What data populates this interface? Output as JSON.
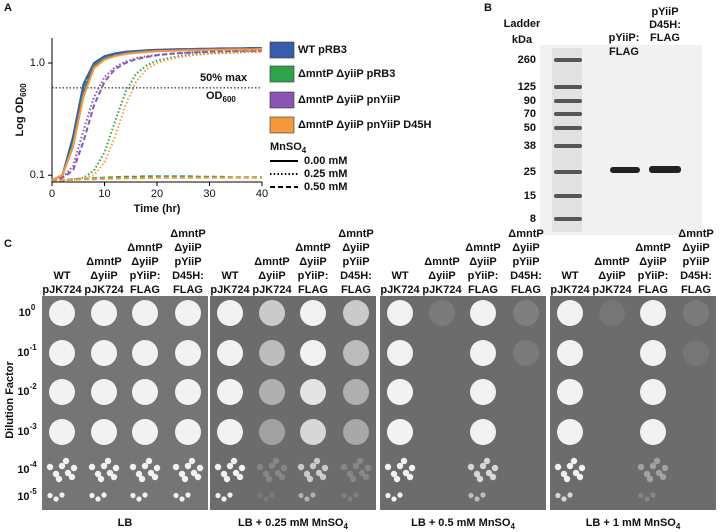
{
  "panel_labels": [
    "A",
    "B",
    "C"
  ],
  "chart_data": {
    "type": "line",
    "x_label": "Time (hr)",
    "y_label": {
      "text": "Log OD",
      "sub": "600"
    },
    "x": [
      0,
      2,
      4,
      6,
      8,
      10,
      12,
      14,
      16,
      18,
      20,
      22,
      24,
      26,
      28,
      30,
      32,
      34,
      36,
      38,
      40
    ],
    "xlim": [
      0,
      40
    ],
    "xticks": [
      0,
      10,
      20,
      30,
      40
    ],
    "log_y": true,
    "ylim": [
      0.087,
      1.67
    ],
    "yticks": [
      0.1,
      {
        "value": 1,
        "label": "1.0"
      }
    ],
    "annotation": {
      "text": "50% max",
      "text2": "OD",
      "sub": "600",
      "y": 0.6
    },
    "style_legend": {
      "title": {
        "text": "MnSO",
        "sub": "4"
      },
      "entries": [
        "0.00 mM",
        "0.25 mM",
        "0.50 mM"
      ]
    },
    "series": [
      {
        "name": "WT pRB3",
        "color": "#3b5bab",
        "lines": [
          [
            0.09,
            0.1,
            0.22,
            0.65,
            1.0,
            1.15,
            1.22,
            1.26,
            1.28,
            1.3,
            1.31,
            1.32,
            1.33,
            1.33,
            1.34,
            1.34,
            1.35,
            1.35,
            1.35,
            1.36,
            1.36
          ],
          [
            0.09,
            0.1,
            0.2,
            0.6,
            0.98,
            1.13,
            1.2,
            1.25,
            1.27,
            1.29,
            1.3,
            1.31,
            1.32,
            1.33,
            1.33,
            1.34,
            1.34,
            1.35,
            1.35,
            1.35,
            1.35
          ],
          [
            0.09,
            0.1,
            0.19,
            0.58,
            0.96,
            1.12,
            1.2,
            1.24,
            1.27,
            1.29,
            1.3,
            1.31,
            1.32,
            1.32,
            1.33,
            1.33,
            1.34,
            1.34,
            1.35,
            1.35,
            1.35
          ]
        ]
      },
      {
        "name": "ΔmntP ΔyiiP pRB3",
        "color": "#2ea34a",
        "lines": [
          [
            0.09,
            0.1,
            0.19,
            0.55,
            0.95,
            1.1,
            1.17,
            1.22,
            1.25,
            1.27,
            1.28,
            1.29,
            1.3,
            1.31,
            1.31,
            1.32,
            1.32,
            1.33,
            1.33,
            1.33,
            1.34
          ],
          [
            0.09,
            0.09,
            0.092,
            0.095,
            0.11,
            0.16,
            0.3,
            0.55,
            0.8,
            0.95,
            1.05,
            1.1,
            1.15,
            1.18,
            1.2,
            1.22,
            1.23,
            1.24,
            1.25,
            1.26,
            1.26
          ],
          [
            0.09,
            0.09,
            0.092,
            0.093,
            0.094,
            0.095,
            0.096,
            0.097,
            0.097,
            0.098,
            0.098,
            0.098,
            0.098,
            0.098,
            0.097,
            0.097,
            0.097,
            0.096,
            0.096,
            0.096,
            0.096
          ]
        ]
      },
      {
        "name": "ΔmntP ΔyiiP pnYiiP",
        "color": "#8a55b3",
        "lines": [
          [
            0.09,
            0.1,
            0.18,
            0.52,
            0.92,
            1.08,
            1.16,
            1.21,
            1.24,
            1.26,
            1.28,
            1.29,
            1.3,
            1.3,
            1.31,
            1.31,
            1.32,
            1.32,
            1.33,
            1.33,
            1.33
          ],
          [
            0.09,
            0.095,
            0.12,
            0.25,
            0.5,
            0.75,
            0.92,
            1.03,
            1.1,
            1.15,
            1.18,
            1.2,
            1.22,
            1.24,
            1.25,
            1.26,
            1.27,
            1.28,
            1.28,
            1.29,
            1.29
          ],
          [
            0.09,
            0.095,
            0.11,
            0.2,
            0.42,
            0.68,
            0.88,
            1.0,
            1.08,
            1.13,
            1.17,
            1.2,
            1.22,
            1.23,
            1.25,
            1.26,
            1.27,
            1.27,
            1.28,
            1.28,
            1.29
          ]
        ]
      },
      {
        "name": "ΔmntP ΔyiiP pnYiiP D45H",
        "color": "#f59a3c",
        "lines": [
          [
            0.09,
            0.1,
            0.18,
            0.5,
            0.9,
            1.07,
            1.15,
            1.2,
            1.23,
            1.25,
            1.27,
            1.28,
            1.29,
            1.3,
            1.3,
            1.31,
            1.31,
            1.32,
            1.32,
            1.32,
            1.33
          ],
          [
            0.09,
            0.09,
            0.091,
            0.094,
            0.1,
            0.13,
            0.22,
            0.42,
            0.68,
            0.88,
            1.0,
            1.07,
            1.12,
            1.16,
            1.19,
            1.21,
            1.22,
            1.23,
            1.24,
            1.25,
            1.25
          ],
          [
            0.09,
            0.09,
            0.091,
            0.092,
            0.092,
            0.093,
            0.093,
            0.094,
            0.094,
            0.094,
            0.095,
            0.095,
            0.095,
            0.095,
            0.095,
            0.095,
            0.095,
            0.095,
            0.095,
            0.095,
            0.095
          ]
        ]
      }
    ]
  },
  "panel_b": {
    "ladder_header": [
      "Ladder",
      "kDa"
    ],
    "lane1_header": [
      "pYiiP:",
      "FLAG"
    ],
    "lane2_header": [
      "pYiiP",
      "D45H:",
      "FLAG"
    ],
    "ladder": [
      260,
      125,
      90,
      70,
      50,
      38,
      25,
      15,
      8
    ]
  },
  "panel_c": {
    "y_label": "Dilution Factor",
    "rows": [
      {
        "base": "10",
        "exp": "0"
      },
      {
        "base": "10",
        "exp": "-1"
      },
      {
        "base": "10",
        "exp": "-2"
      },
      {
        "base": "10",
        "exp": "-3"
      },
      {
        "base": "10",
        "exp": "-4"
      },
      {
        "base": "10",
        "exp": "-5"
      }
    ],
    "columns": [
      [
        "WT",
        "pJK724"
      ],
      [
        "ΔmntP",
        "ΔyiiP",
        "pJK724"
      ],
      [
        "ΔmntP",
        "ΔyiiP",
        "pYiiP:",
        "FLAG"
      ],
      [
        "ΔmntP",
        "ΔyiiP",
        "pYiiP",
        "D45H:",
        "FLAG"
      ]
    ],
    "plates": [
      {
        "text": "LB"
      },
      {
        "text": "LB + 0.25 mM MnSO",
        "sub": "4"
      },
      {
        "text": "LB + 0.5 mM MnSO",
        "sub": "4"
      },
      {
        "text": "LB + 1 mM MnSO",
        "sub": "4"
      }
    ]
  }
}
